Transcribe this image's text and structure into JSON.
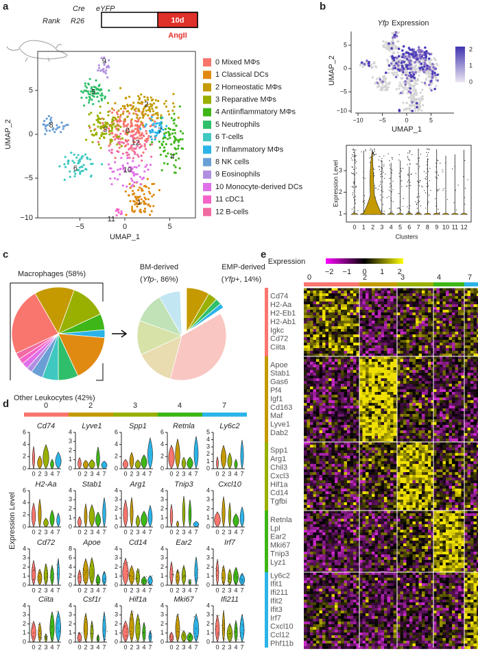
{
  "a": {
    "label": "a",
    "schematic": {
      "cre": "Cre",
      "eyfp": "eYFP",
      "rank": "Rank",
      "r26": "R26",
      "duration": "10d",
      "treatment": "AngII"
    },
    "umap": {
      "xlabel": "UMAP_1",
      "ylabel": "UMAP_2",
      "xticks": [
        "−5",
        "0",
        "5"
      ],
      "yticks": [
        "5",
        "0",
        "−5",
        "−10"
      ],
      "cluster_labels": [
        "0",
        "1",
        "2",
        "3",
        "4",
        "5",
        "6",
        "7",
        "8",
        "9",
        "10",
        "11",
        "12"
      ]
    },
    "legend": [
      {
        "label": "0 Mixed MΦs",
        "color": "#f8766d"
      },
      {
        "label": "1 Classical DCs",
        "color": "#e08a12"
      },
      {
        "label": "2 Homeostatic MΦs",
        "color": "#c49a00"
      },
      {
        "label": "3 Reparative MΦs",
        "color": "#99b000"
      },
      {
        "label": "4 Antiinflammatory MΦs",
        "color": "#3fb618"
      },
      {
        "label": "5 Neutrophils",
        "color": "#2fbf6a"
      },
      {
        "label": "6 T-cells",
        "color": "#3fc8c0"
      },
      {
        "label": "7 Inflammatory MΦs",
        "color": "#2cb4e8"
      },
      {
        "label": "8 NK cells",
        "color": "#6a9fd6"
      },
      {
        "label": "9 Eosinophils",
        "color": "#b08fe0"
      },
      {
        "label": "10 Monocyte-derived DCs",
        "color": "#e070e8"
      },
      {
        "label": "11 cDC1",
        "color": "#f563c8"
      },
      {
        "label": "12 B-cells",
        "color": "#f06aa0"
      }
    ]
  },
  "b": {
    "label": "b",
    "title_gene": "Yfp",
    "title_rest": "Expression",
    "umap": {
      "xlabel": "UMAP_1",
      "ylabel": "UMAP_2",
      "xticks": [
        "−10",
        "−5",
        "0",
        "5"
      ],
      "yticks": [
        "5",
        "0",
        "−5",
        "−10"
      ]
    },
    "colorbar_ticks": [
      "2",
      "1",
      "0"
    ],
    "violin": {
      "ylabel": "Expression Level",
      "xlabel": "Clusters",
      "yticks": [
        "3",
        "2",
        "1"
      ],
      "categories": [
        "0",
        "1",
        "2",
        "3",
        "4",
        "5",
        "6",
        "7",
        "8",
        "9",
        "10",
        "11",
        "12"
      ]
    }
  },
  "c": {
    "label": "c",
    "macrophages": "Macrophages (58%)",
    "other": "Other Leukocytes (42%)",
    "bm_title": "BM-derived",
    "bm_sub": [
      "(",
      "Yfp",
      "-, 86%)"
    ],
    "emp_title": "EMP-derived",
    "emp_sub": [
      "(",
      "Yfp",
      "+, 14%)"
    ]
  },
  "d": {
    "label": "d",
    "clusters": [
      "0",
      "2",
      "3",
      "4",
      "7"
    ],
    "ylabel": "Expression Level",
    "cells": [
      {
        "gene": "Cd74",
        "yticks": [
          "6",
          "4",
          "2",
          "0"
        ]
      },
      {
        "gene": "Lyve1",
        "yticks": [
          "4",
          "3",
          "2",
          "1",
          "0"
        ]
      },
      {
        "gene": "Spp1",
        "yticks": [
          "6",
          "4",
          "2",
          "0"
        ]
      },
      {
        "gene": "Retnla",
        "yticks": [
          "6",
          "4",
          "2",
          "0"
        ]
      },
      {
        "gene": "Ly6c2",
        "yticks": [
          "5",
          "4",
          "3",
          "2",
          "1",
          "0"
        ]
      },
      {
        "gene": "H2-Aa",
        "yticks": [
          "6",
          "4",
          "2",
          "0"
        ]
      },
      {
        "gene": "Stab1",
        "yticks": [
          "4",
          "3",
          "2",
          "1",
          "0"
        ]
      },
      {
        "gene": "Arg1",
        "yticks": [
          "4",
          "3",
          "2",
          "1",
          "0"
        ]
      },
      {
        "gene": "Tnip3",
        "yticks": [
          "4",
          "3",
          "2",
          "1",
          "0"
        ]
      },
      {
        "gene": "Cxcl10",
        "yticks": [
          "4",
          "3",
          "2",
          "1",
          "0"
        ]
      },
      {
        "gene": "Cd72",
        "yticks": [
          "4",
          "3",
          "2",
          "1",
          "0"
        ]
      },
      {
        "gene": "Apoe",
        "yticks": [
          "8",
          "6",
          "4",
          "2",
          "0"
        ]
      },
      {
        "gene": "Cd14",
        "yticks": [
          "4",
          "3",
          "2",
          "1",
          "0"
        ]
      },
      {
        "gene": "Ear2",
        "yticks": [
          "4",
          "3",
          "2",
          "1",
          "0"
        ]
      },
      {
        "gene": "Irf7",
        "yticks": [
          "4",
          "3",
          "2",
          "1",
          "0"
        ]
      },
      {
        "gene": "Ciita",
        "yticks": [
          "4",
          "3",
          "2",
          "1",
          "0"
        ]
      },
      {
        "gene": "Csf1r",
        "yticks": [
          "4",
          "3",
          "2",
          "1",
          "0"
        ]
      },
      {
        "gene": "Hif1a",
        "yticks": [
          "4",
          "3",
          "2",
          "1",
          "0"
        ]
      },
      {
        "gene": "Mki67",
        "yticks": [
          "4",
          "3",
          "2",
          "1",
          "0"
        ]
      },
      {
        "gene": "Ifi211",
        "yticks": [
          "4",
          "3",
          "2",
          "1",
          "0"
        ]
      }
    ]
  },
  "e": {
    "label": "e",
    "colorbar_title": "Expression",
    "colorbar_ticks": [
      "−2",
      "−1",
      "0",
      "1",
      "2"
    ],
    "clusters": [
      "0",
      "2",
      "3",
      "4",
      "7"
    ],
    "gene_groups": [
      [
        "Cd74",
        "H2-Aa",
        "H2-Eb1",
        "H2-Ab1",
        "Igkc",
        "Cd72",
        "Ciita"
      ],
      [
        "Apoe",
        "Stab1",
        "Gas6",
        "Pf4",
        "Igf1",
        "Cd163",
        "Maf",
        "Lyve1",
        "Dab2"
      ],
      [
        "Spp1",
        "Arg1",
        "Chil3",
        "Cxcl3",
        "Hif1a",
        "Cd14",
        "Tgfbi"
      ],
      [
        "Retnla",
        "Lpl",
        "Ear2",
        "Mki67",
        "Tnip3",
        "Lyz1"
      ],
      [
        "Ly6c2",
        "Ifit1",
        "Ifi211",
        "Ifit2",
        "Ifit3",
        "Irf7",
        "Cxcl10",
        "Ccl12",
        "Phf11b"
      ]
    ]
  }
}
